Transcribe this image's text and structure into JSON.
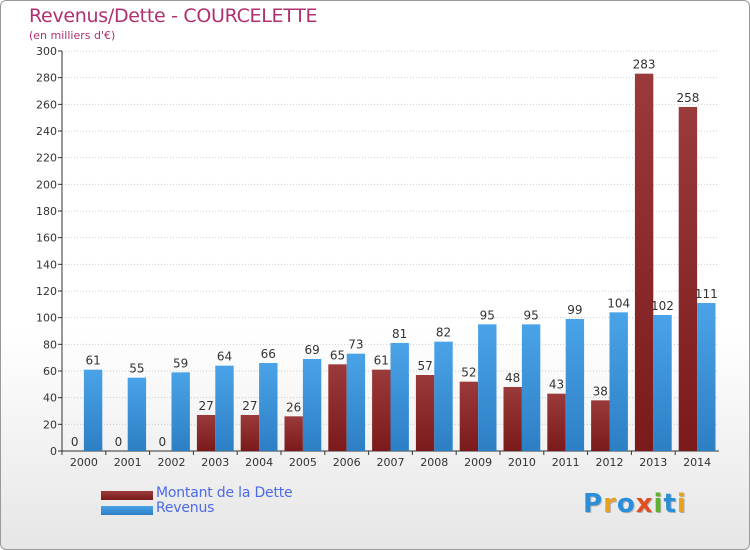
{
  "title": "Revenus/Dette - COURCELETTE",
  "subtitle": "(en milliers d'€)",
  "logo": {
    "text": "Proxiti",
    "letters": [
      {
        "ch": "P",
        "color": "#2a8fd8"
      },
      {
        "ch": "r",
        "color": "#e8a020"
      },
      {
        "ch": "o",
        "color": "#2a8fd8"
      },
      {
        "ch": "x",
        "color": "#e05020"
      },
      {
        "ch": "i",
        "color": "#60b030"
      },
      {
        "ch": "t",
        "color": "#2a8fd8"
      },
      {
        "ch": "i",
        "color": "#e8a020"
      }
    ]
  },
  "colors": {
    "debt": "#7a1a1a",
    "debt_light": "#9a3a3a",
    "revenue": "#4aa3e8",
    "revenue_dark": "#2d7fc4",
    "axis": "#333333",
    "grid": "#cccccc"
  },
  "chart_data": {
    "type": "bar",
    "title": "Revenus/Dette - COURCELETTE",
    "ylabel": "(en milliers d'€)",
    "ylim": [
      0,
      300
    ],
    "yticks": [
      0,
      20,
      40,
      60,
      80,
      100,
      120,
      140,
      160,
      180,
      200,
      220,
      240,
      260,
      280,
      300
    ],
    "categories": [
      "2000",
      "2001",
      "2002",
      "2003",
      "2004",
      "2005",
      "2006",
      "2007",
      "2008",
      "2009",
      "2010",
      "2011",
      "2012",
      "2013",
      "2014"
    ],
    "series": [
      {
        "name": "Montant de la Dette",
        "values": [
          0,
          0,
          0,
          27,
          27,
          26,
          65,
          61,
          57,
          52,
          48,
          43,
          38,
          283,
          258
        ]
      },
      {
        "name": "Revenus",
        "values": [
          61,
          55,
          59,
          64,
          66,
          69,
          73,
          81,
          82,
          95,
          95,
          99,
          104,
          102,
          111
        ]
      }
    ],
    "legend": "bottom-left"
  }
}
